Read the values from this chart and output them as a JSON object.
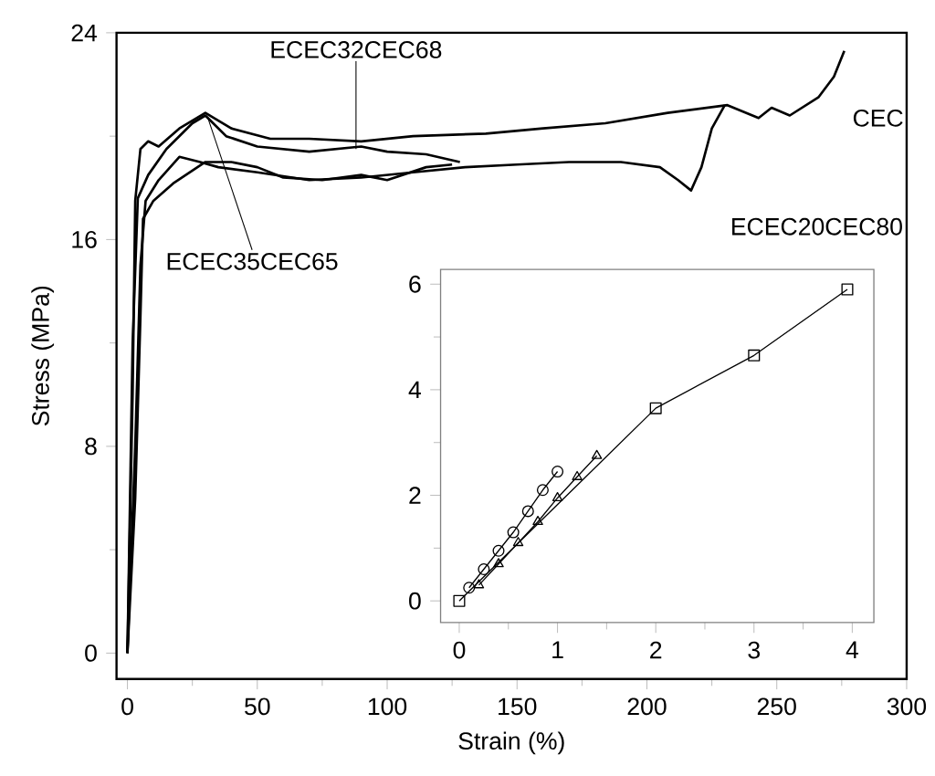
{
  "chart_data": [
    {
      "type": "line",
      "xlabel": "Strain (%)",
      "ylabel": "Stress (MPa)",
      "xlim": [
        -4.2,
        300
      ],
      "ylim": [
        -1,
        24
      ],
      "xticks": [
        0,
        50,
        100,
        150,
        200,
        250,
        300
      ],
      "yticks": [
        0,
        8,
        16,
        24
      ],
      "series": [
        {
          "color": "#000000",
          "x": [
            0,
            2,
            3,
            5,
            8,
            12,
            20,
            30,
            40,
            55,
            70,
            90,
            110,
            138,
            160,
            184,
            208,
            231,
            243,
            248,
            255,
            266,
            272,
            276
          ],
          "values": [
            0,
            10,
            17.5,
            19.5,
            19.8,
            19.6,
            20.3,
            20.9,
            20.3,
            19.9,
            19.9,
            19.8,
            20.0,
            20.1,
            20.3,
            20.5,
            20.9,
            21.2,
            20.7,
            21.1,
            20.8,
            21.5,
            22.3,
            23.3
          ]
        },
        {
          "color": "#000000",
          "x": [
            0,
            3,
            5,
            7,
            12,
            20,
            28,
            35,
            50,
            70,
            90,
            110,
            130,
            150,
            170,
            190,
            205,
            212,
            217,
            221,
            225,
            230
          ],
          "values": [
            0,
            8,
            15,
            17.5,
            18.3,
            19.2,
            19.0,
            18.8,
            18.6,
            18.3,
            18.4,
            18.6,
            18.8,
            18.9,
            19.0,
            19.0,
            18.8,
            18.3,
            17.9,
            18.8,
            20.3,
            21.2
          ]
        },
        {
          "color": "#000000",
          "x": [
            0,
            2,
            4,
            8,
            15,
            25,
            30,
            38,
            50,
            70,
            90,
            100,
            115,
            128
          ],
          "values": [
            0,
            12,
            17.6,
            18.5,
            19.5,
            20.5,
            20.8,
            20.0,
            19.6,
            19.4,
            19.6,
            19.4,
            19.3,
            19.0
          ]
        },
        {
          "color": "#000000",
          "x": [
            0,
            3,
            5,
            6,
            10,
            18,
            30,
            40,
            50,
            60,
            75,
            90,
            100,
            115,
            125
          ],
          "values": [
            0,
            6,
            13,
            16.8,
            17.5,
            18.2,
            19.0,
            19.0,
            18.8,
            18.4,
            18.3,
            18.5,
            18.3,
            18.8,
            18.9
          ]
        }
      ],
      "annotations": [
        {
          "text": "ECEC32CEC68",
          "x": 88,
          "y": 19.5
        },
        {
          "text": "ECEC35CEC65",
          "x": 31,
          "y": 20.7
        },
        {
          "text": "CEC",
          "x": 272,
          "y": 22.3
        },
        {
          "text": "ECEC20CEC80",
          "x": 217,
          "y": 17.9
        }
      ]
    },
    {
      "type": "line",
      "xlim": [
        -0.19,
        4.22
      ],
      "ylim": [
        -0.41,
        6.28
      ],
      "xticks": [
        0,
        1,
        2,
        3,
        4
      ],
      "yticks": [
        0,
        2,
        4,
        6
      ],
      "series": [
        {
          "color": "#000000",
          "marker": "square",
          "x": [
            0,
            2,
            3,
            3.95
          ],
          "values": [
            0,
            3.65,
            4.65,
            5.9
          ]
        },
        {
          "color": "#000000",
          "marker": "circle",
          "x": [
            0.1,
            0.25,
            0.4,
            0.55,
            0.7,
            0.85,
            1.0
          ],
          "values": [
            0.25,
            0.6,
            0.95,
            1.3,
            1.7,
            2.1,
            2.45
          ]
        },
        {
          "color": "#000000",
          "marker": "triangle",
          "x": [
            0.2,
            0.4,
            0.6,
            0.8,
            1.0,
            1.2,
            1.4
          ],
          "values": [
            0.3,
            0.7,
            1.1,
            1.5,
            1.95,
            2.35,
            2.75
          ]
        }
      ]
    }
  ]
}
